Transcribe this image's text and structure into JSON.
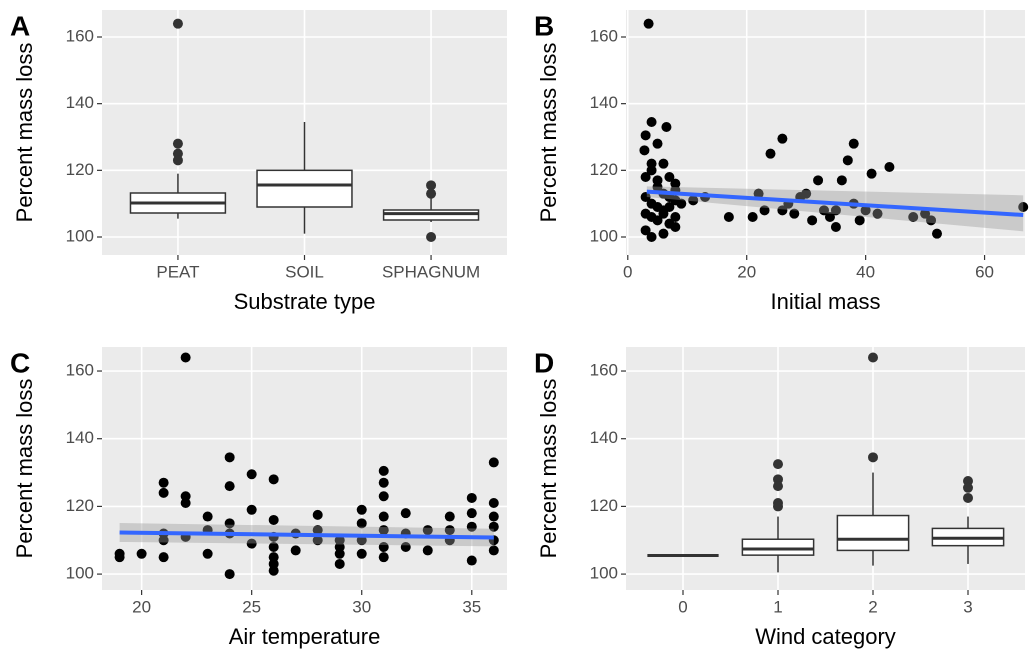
{
  "chart_data": [
    {
      "type": "box",
      "panel_label": "A",
      "xlabel": "Substrate type",
      "ylabel": "Percent mass loss",
      "categories": [
        "PEAT",
        "SOIL",
        "SPHAGNUM"
      ],
      "boxes": [
        {
          "min": 105.5,
          "q1": 107.2,
          "median": 110.2,
          "q3": 113.2,
          "max": 119,
          "outliers": [
            164,
            128,
            125,
            123
          ]
        },
        {
          "min": 101,
          "q1": 109,
          "median": 115.6,
          "q3": 120,
          "max": 134.5,
          "outliers": []
        },
        {
          "min": 104.5,
          "q1": 105.1,
          "median": 107,
          "q3": 108.1,
          "max": 112,
          "outliers": [
            115.5,
            113,
            100
          ]
        }
      ],
      "ylim": [
        94.6,
        168.1
      ],
      "yticks": [
        100,
        120,
        140,
        160
      ],
      "color": "#ffffff",
      "grid": true
    },
    {
      "type": "scatter",
      "panel_label": "B",
      "xlabel": "Initial mass",
      "ylabel": "Percent mass loss",
      "x": [
        3.5,
        4,
        3,
        6.5,
        5,
        2.8,
        6,
        4,
        7,
        8,
        3,
        5,
        6,
        7,
        8,
        4,
        5,
        6,
        3,
        4,
        5,
        7,
        8,
        9,
        3,
        4,
        6,
        7,
        8,
        3,
        5,
        6,
        7,
        4,
        8,
        11,
        13,
        17,
        21,
        22,
        23,
        24,
        26,
        26,
        27,
        28,
        29,
        30,
        31,
        32,
        33,
        34,
        35,
        35,
        36,
        37,
        38,
        38,
        39,
        40,
        41,
        42,
        44,
        48,
        50,
        51,
        52,
        66.5
      ],
      "y": [
        164,
        134.5,
        130.5,
        133,
        128,
        126,
        122,
        120,
        118,
        116,
        118,
        115,
        113,
        112,
        111,
        110,
        109,
        108,
        107,
        106,
        105,
        104,
        103,
        110,
        102,
        100,
        101,
        112,
        114,
        112,
        117,
        107,
        109,
        122,
        106,
        111,
        112,
        106,
        106,
        113,
        108,
        125,
        129.5,
        108,
        110,
        107,
        112,
        113,
        105,
        117,
        108,
        106,
        108,
        103,
        117,
        123,
        110,
        128,
        105,
        108,
        119,
        107,
        121,
        106,
        107,
        105,
        101,
        109
      ],
      "fit": {
        "x": [
          3.2,
          66.5
        ],
        "y": [
          113.6,
          106.6
        ],
        "lower": [
          112,
          101.7
        ],
        "upper": [
          115.2,
          112.5
        ]
      },
      "xlim": [
        -0.3,
        66.8
      ],
      "xticks": [
        0,
        20,
        40,
        60
      ],
      "ylim": [
        94.6,
        168.1
      ],
      "yticks": [
        100,
        120,
        140,
        160
      ],
      "color": "#000000",
      "fit_color": "#3366ff",
      "grid": true
    },
    {
      "type": "scatter",
      "panel_label": "C",
      "xlabel": "Air temperature",
      "ylabel": "Percent mass loss",
      "x": [
        19,
        19,
        20,
        21,
        21,
        21,
        21,
        21,
        22,
        22,
        22,
        22,
        23,
        23,
        23,
        24,
        24,
        24,
        24,
        24,
        25,
        25,
        25,
        26,
        26,
        26,
        26,
        26,
        26,
        26,
        27,
        27,
        28,
        28,
        28,
        29,
        29,
        29,
        29,
        30,
        30,
        30,
        30,
        31,
        31,
        31,
        31,
        31,
        31,
        31,
        32,
        32,
        32,
        33,
        33,
        34,
        34,
        34,
        35,
        35,
        35,
        35,
        36,
        36,
        36,
        36,
        36,
        36
      ],
      "y": [
        105,
        106,
        106,
        127,
        124,
        112,
        110,
        105,
        164,
        123,
        121,
        111,
        117,
        113,
        106,
        134.5,
        126,
        115,
        112,
        100,
        129.5,
        119,
        109,
        128,
        116,
        111,
        108,
        105,
        103,
        101,
        112,
        107,
        117.5,
        113,
        110,
        110,
        108,
        106,
        103,
        119,
        115,
        110,
        106,
        130.5,
        127,
        123,
        117,
        113,
        108,
        105,
        118,
        112,
        108,
        113,
        107,
        117,
        113,
        110,
        122.5,
        118,
        114,
        104,
        133,
        121,
        117,
        114,
        110,
        107
      ],
      "fit": {
        "x": [
          19,
          36
        ],
        "y": [
          112.3,
          110.8
        ],
        "lower": [
          109.5,
          108.2
        ],
        "upper": [
          115.1,
          113.4
        ]
      },
      "xlim": [
        18.2,
        36.6
      ],
      "xticks": [
        20,
        25,
        30,
        35
      ],
      "ylim": [
        95.3,
        167.1
      ],
      "yticks": [
        100,
        120,
        140,
        160
      ],
      "color": "#000000",
      "fit_color": "#3366ff",
      "grid": true
    },
    {
      "type": "box",
      "panel_label": "D",
      "xlabel": "Wind category",
      "ylabel": "Percent mass loss",
      "categories": [
        "0",
        "1",
        "2",
        "3"
      ],
      "boxes": [
        {
          "min": 105.5,
          "q1": 105.5,
          "median": 105.5,
          "q3": 105.5,
          "max": 105.5,
          "outliers": []
        },
        {
          "min": 100.5,
          "q1": 105.6,
          "median": 107.4,
          "q3": 110.3,
          "max": 117,
          "outliers": [
            132.5,
            128,
            126,
            121,
            120
          ]
        },
        {
          "min": 102.5,
          "q1": 107,
          "median": 110.3,
          "q3": 117.3,
          "max": 130,
          "outliers": [
            164,
            134.5
          ]
        },
        {
          "min": 103,
          "q1": 108.4,
          "median": 110.6,
          "q3": 113.5,
          "max": 117,
          "outliers": [
            127.5,
            125.5,
            122.5
          ]
        }
      ],
      "ylim": [
        95.3,
        167.1
      ],
      "yticks": [
        100,
        120,
        140,
        160
      ],
      "color": "#ffffff",
      "grid": true
    }
  ]
}
